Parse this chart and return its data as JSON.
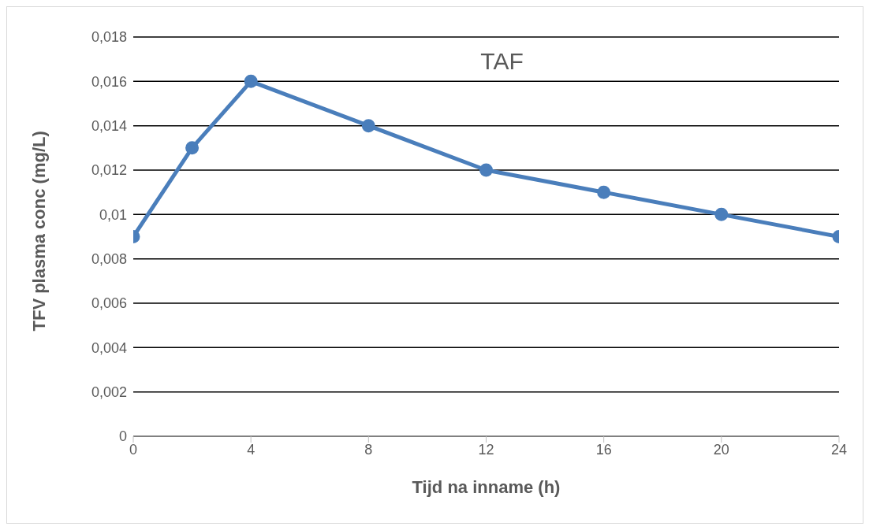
{
  "chart_data": {
    "type": "line",
    "title": "TAF",
    "xlabel": "Tijd na inname (h)",
    "ylabel": "TFV plasma conc (mg/L)",
    "x": [
      0,
      2,
      4,
      8,
      12,
      16,
      20,
      24
    ],
    "series": [
      {
        "color": "#4a7ebb",
        "values": [
          0.009,
          0.013,
          0.016,
          0.014,
          0.012,
          0.011,
          0.01,
          0.009
        ]
      }
    ],
    "xlim": [
      0,
      24
    ],
    "xticks": [
      0,
      4,
      8,
      12,
      16,
      20,
      24
    ],
    "ylim": [
      0,
      0.018
    ],
    "yticks": [
      0,
      {
        "value": 0.002,
        "label": "0,002"
      },
      {
        "value": 0.004,
        "label": "0,004"
      },
      {
        "value": 0.006,
        "label": "0,006"
      },
      {
        "value": 0.008,
        "label": "0,008"
      },
      {
        "value": 0.01,
        "label": "0,01"
      },
      {
        "value": 0.012,
        "label": "0,012"
      },
      {
        "value": 0.014,
        "label": "0,014"
      },
      {
        "value": 0.016,
        "label": "0,016"
      },
      {
        "value": 0.018,
        "label": "0,018"
      }
    ],
    "grid": "y",
    "legend": false,
    "marker": "circle",
    "line_style": "solid"
  }
}
